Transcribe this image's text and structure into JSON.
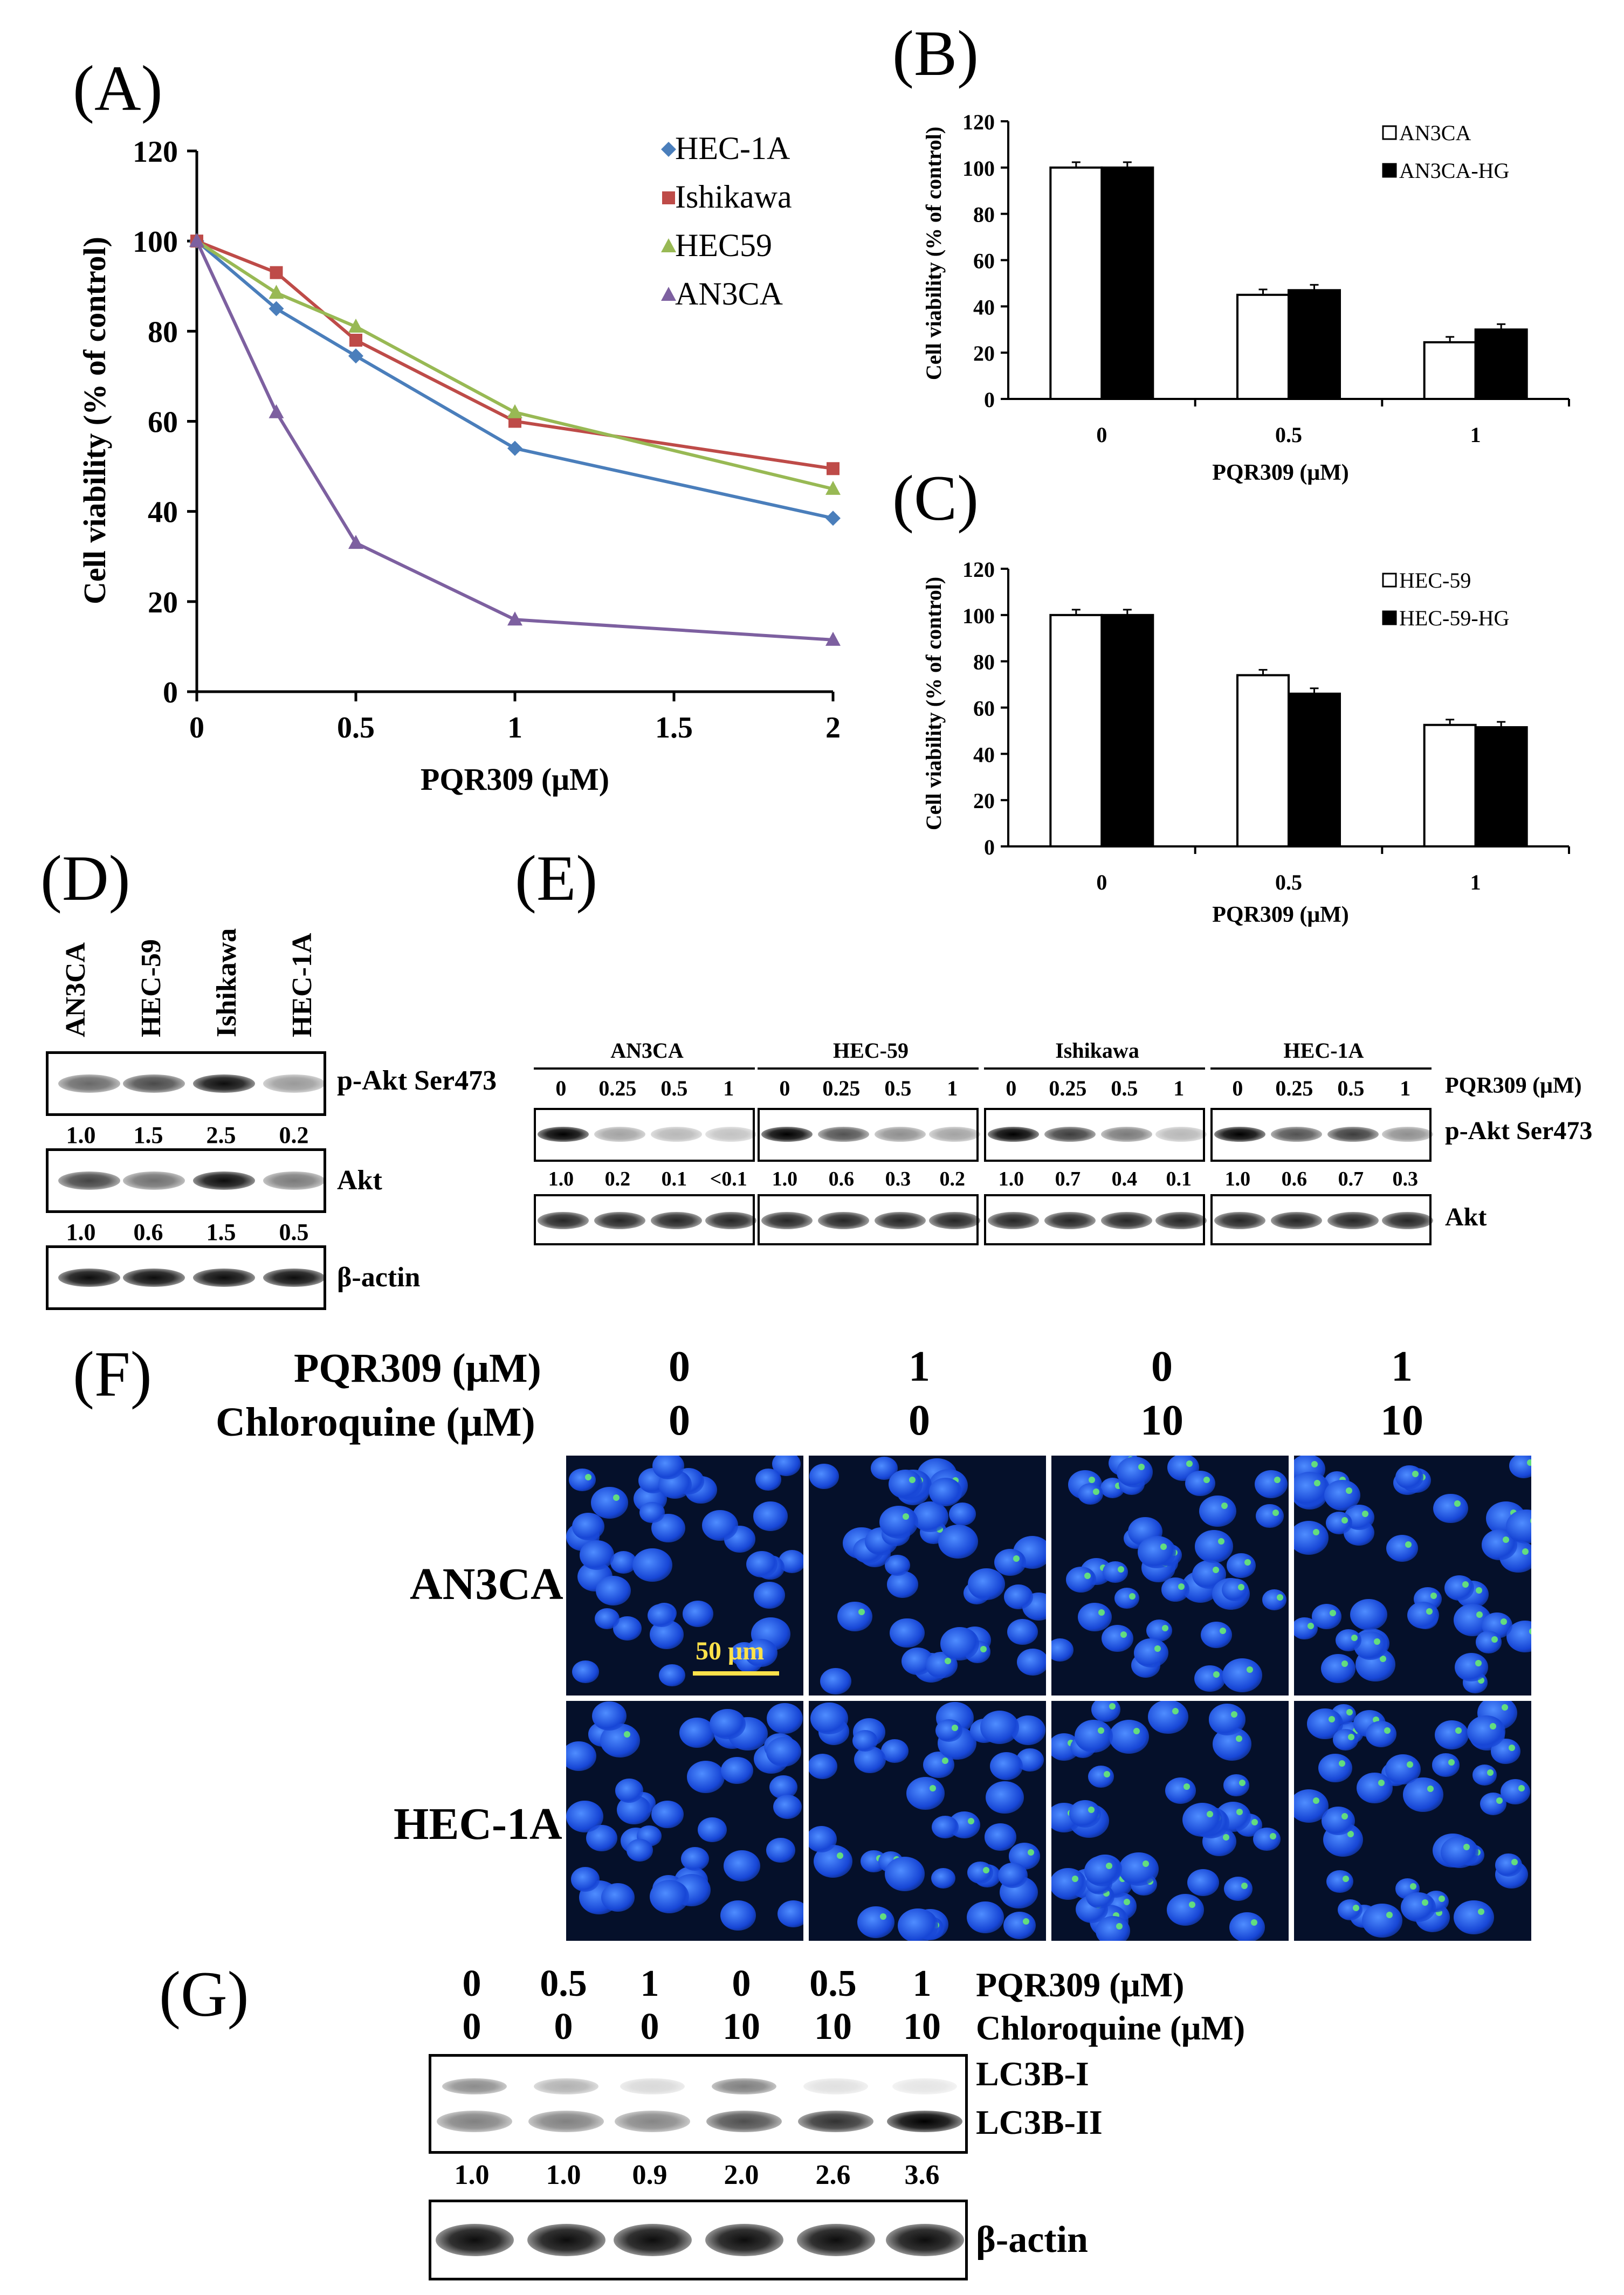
{
  "panels": {
    "a": "(A)",
    "b": "(B)",
    "c": "(C)",
    "d": "(D)",
    "e": "(E)",
    "f": "(F)",
    "g": "(G)"
  },
  "chart_data": [
    {
      "panel": "A",
      "type": "line",
      "ylabel": "Cell viability (% of control)",
      "xlabel": "PQR309 (μM)",
      "xlim": [
        0,
        2
      ],
      "ylim": [
        0,
        120
      ],
      "xticks": [
        "0",
        "0.5",
        "1",
        "1.5",
        "2"
      ],
      "yticks": [
        "0",
        "20",
        "40",
        "60",
        "80",
        "100",
        "120"
      ],
      "legend": "top-right",
      "series": [
        {
          "name": "HEC-1A",
          "color": "#4a7ebb",
          "marker": "diamond",
          "x": [
            0,
            0.25,
            0.5,
            1,
            2
          ],
          "y": [
            100,
            85,
            74.5,
            54,
            38.5
          ]
        },
        {
          "name": "Ishikawa",
          "color": "#be4b48",
          "marker": "square",
          "x": [
            0,
            0.25,
            0.5,
            1,
            2
          ],
          "y": [
            100,
            93,
            78,
            60,
            49.5
          ]
        },
        {
          "name": "HEC59",
          "color": "#98b954",
          "marker": "triangle",
          "x": [
            0,
            0.25,
            0.5,
            1,
            2
          ],
          "y": [
            100,
            88.5,
            81,
            62,
            45
          ]
        },
        {
          "name": "AN3CA",
          "color": "#7d60a0",
          "marker": "triangle",
          "x": [
            0,
            0.25,
            0.5,
            1,
            2
          ],
          "y": [
            100,
            62,
            33,
            16,
            11.5
          ]
        }
      ]
    },
    {
      "panel": "B",
      "type": "bar",
      "ylabel": "Cell viability (% of control)",
      "xlabel": "PQR309 (μM)",
      "categories": [
        "0",
        "0.5",
        "1"
      ],
      "ylim": [
        0,
        120
      ],
      "yticks": [
        "0",
        "20",
        "40",
        "60",
        "80",
        "100",
        "120"
      ],
      "legend": "top-right",
      "series": [
        {
          "name": "AN3CA",
          "fill": "#ffffff",
          "values": [
            100,
            45,
            24.5
          ]
        },
        {
          "name": "AN3CA-HG",
          "fill": "#000000",
          "values": [
            100,
            47,
            30
          ]
        }
      ]
    },
    {
      "panel": "C",
      "type": "bar",
      "ylabel": "Cell viability (% of control)",
      "xlabel": "PQR309 (μM)",
      "categories": [
        "0",
        "0.5",
        "1"
      ],
      "ylim": [
        0,
        120
      ],
      "yticks": [
        "0",
        "20",
        "40",
        "60",
        "80",
        "100",
        "120"
      ],
      "legend": "top-right",
      "series": [
        {
          "name": "HEC-59",
          "fill": "#ffffff",
          "values": [
            100,
            74,
            52.5
          ]
        },
        {
          "name": "HEC-59-HG",
          "fill": "#000000",
          "values": [
            100,
            66,
            51.5
          ]
        }
      ]
    }
  ],
  "blot_d": {
    "lanes": [
      "AN3CA",
      "HEC-59",
      "Ishikawa",
      "HEC-1A"
    ],
    "labels": [
      "p-Akt Ser473",
      "Akt",
      "β-actin"
    ],
    "pakt_quant": [
      "1.0",
      "1.5",
      "2.5",
      "0.2"
    ],
    "akt_quant": [
      "1.0",
      "0.6",
      "1.5",
      "0.5"
    ]
  },
  "blot_e": {
    "groups": [
      "AN3CA",
      "HEC-59",
      "Ishikawa",
      "HEC-1A"
    ],
    "doses": [
      "0",
      "0.25",
      "0.5",
      "1"
    ],
    "dose_label": "PQR309 (μM)",
    "labels": [
      "p-Akt Ser473",
      "Akt"
    ],
    "quant": [
      [
        "1.0",
        "0.2",
        "0.1",
        "<0.1"
      ],
      [
        "1.0",
        "0.6",
        "0.3",
        "0.2"
      ],
      [
        "1.0",
        "0.7",
        "0.4",
        "0.1"
      ],
      [
        "1.0",
        "0.6",
        "0.7",
        "0.3"
      ]
    ]
  },
  "panel_f": {
    "row1_label": "PQR309 (μM)",
    "row2_label": "Chloroquine (μM)",
    "pqr": [
      "0",
      "1",
      "0",
      "1"
    ],
    "cq": [
      "0",
      "0",
      "10",
      "10"
    ],
    "rows": [
      "AN3CA",
      "HEC-1A"
    ],
    "scale_bar": "50 μm"
  },
  "blot_g": {
    "pqr": [
      "0",
      "0.5",
      "1",
      "0",
      "0.5",
      "1"
    ],
    "cq": [
      "0",
      "0",
      "0",
      "10",
      "10",
      "10"
    ],
    "pqr_label": "PQR309 (μM)",
    "cq_label": "Chloroquine (μM)",
    "labels": [
      "LC3B-I",
      "LC3B-II",
      "β-actin"
    ],
    "quant": [
      "1.0",
      "1.0",
      "0.9",
      "2.0",
      "2.6",
      "3.6"
    ]
  }
}
